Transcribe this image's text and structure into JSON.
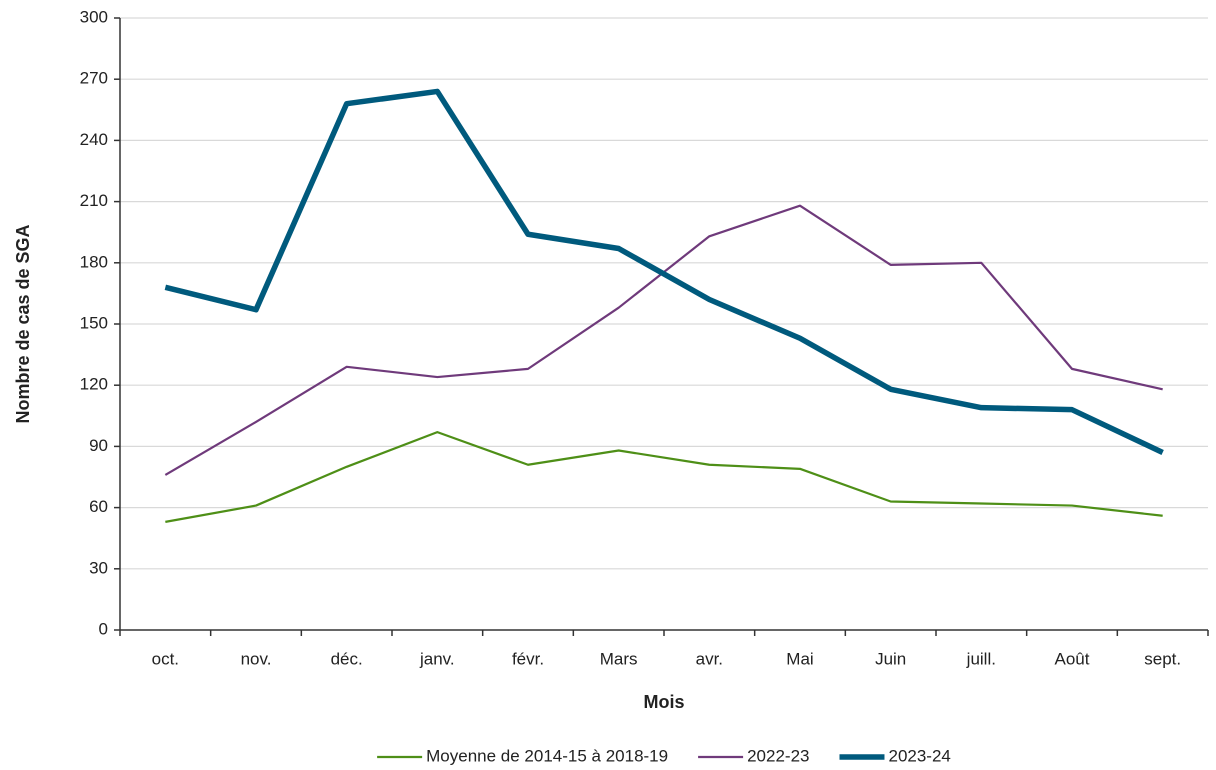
{
  "chart_data": {
    "type": "line",
    "x_label": "Mois",
    "y_label": "Nombre de cas de SGA",
    "categories": [
      "oct.",
      "nov.",
      "déc.",
      "janv.",
      "févr.",
      "Mars",
      "avr.",
      "Mai",
      "Juin",
      "juill.",
      "Août",
      "sept."
    ],
    "series": [
      {
        "name": "Moyenne de 2014-15 à 2018-19",
        "color": "#4e8f17",
        "values": [
          53,
          61,
          80,
          97,
          81,
          88,
          81,
          79,
          63,
          62,
          61,
          56
        ]
      },
      {
        "name": "2022-23",
        "color": "#6f3a7b",
        "values": [
          76,
          102,
          129,
          124,
          128,
          158,
          193,
          208,
          179,
          180,
          128,
          118
        ]
      },
      {
        "name": "2023-24",
        "color": "#005a7d",
        "values": [
          168,
          157,
          258,
          264,
          194,
          187,
          162,
          143,
          118,
          109,
          108,
          87
        ]
      }
    ],
    "ylim": [
      0,
      300
    ],
    "yticks": [
      0,
      30,
      60,
      90,
      120,
      150,
      180,
      210,
      240,
      270,
      300
    ],
    "grid": true,
    "legend": "bottom"
  }
}
